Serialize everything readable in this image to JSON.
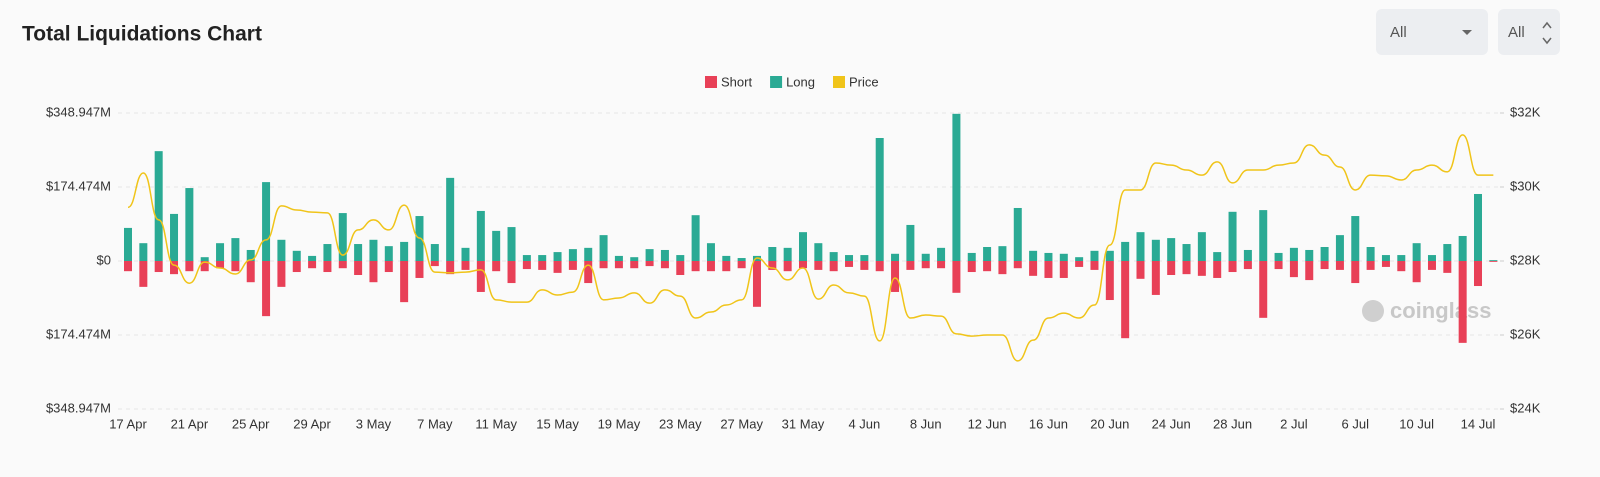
{
  "header": {
    "title": "Total Liquidations Chart"
  },
  "controls": [
    {
      "label": "All"
    },
    {
      "label": "All"
    }
  ],
  "watermark": "coinglass",
  "chart_data": {
    "type": "bar",
    "categories": [
      "17 Apr",
      null,
      null,
      null,
      "21 Apr",
      null,
      null,
      null,
      "25 Apr",
      null,
      null,
      null,
      "29 Apr",
      null,
      null,
      null,
      "3 May",
      null,
      null,
      null,
      "7 May",
      null,
      null,
      null,
      "11 May",
      null,
      null,
      null,
      "15 May",
      null,
      null,
      null,
      "19 May",
      null,
      null,
      null,
      "23 May",
      null,
      null,
      null,
      "27 May",
      null,
      null,
      null,
      "31 May",
      null,
      null,
      null,
      "4 Jun",
      null,
      null,
      null,
      "8 Jun",
      null,
      null,
      null,
      "12 Jun",
      null,
      null,
      null,
      "16 Jun",
      null,
      null,
      null,
      "20 Jun",
      null,
      null,
      null,
      "24 Jun",
      null,
      null,
      null,
      "28 Jun",
      null,
      null,
      null,
      "2 Jul",
      null,
      null,
      null,
      "6 Jul",
      null,
      null,
      null,
      "10 Jul",
      null,
      null,
      null,
      "14 Jul",
      null
    ],
    "series": [
      {
        "name": "Short",
        "color": "#e84057",
        "values": [
          -24,
          -61,
          -26,
          -31,
          -24,
          -24,
          -17,
          -24,
          -50,
          -130,
          -61,
          -26,
          -17,
          -26,
          -17,
          -33,
          -50,
          -26,
          -97,
          -40,
          -12,
          -31,
          -21,
          -73,
          -24,
          -52,
          -19,
          -21,
          -28,
          -21,
          -52,
          -17,
          -17,
          -17,
          -12,
          -17,
          -33,
          -24,
          -24,
          -24,
          -17,
          -108,
          -21,
          -24,
          -17,
          -21,
          -24,
          -14,
          -21,
          -24,
          -73,
          -21,
          -17,
          -17,
          -75,
          -26,
          -24,
          -31,
          -17,
          -35,
          -40,
          -40,
          -14,
          -21,
          -92,
          -182,
          -42,
          -80,
          -33,
          -31,
          -35,
          -40,
          -26,
          -19,
          -134,
          -19,
          -38,
          -45,
          -19,
          -21,
          -52,
          -21,
          -14,
          -24,
          -50,
          -21,
          -28,
          -193,
          -59,
          -2
        ]
      },
      {
        "name": "Long",
        "color": "#2aaa94",
        "values": [
          78,
          42,
          259,
          111,
          172,
          9,
          42,
          54,
          26,
          186,
          50,
          24,
          12,
          40,
          113,
          40,
          50,
          35,
          45,
          106,
          40,
          196,
          31,
          118,
          71,
          80,
          14,
          14,
          21,
          28,
          31,
          61,
          12,
          9,
          28,
          26,
          14,
          108,
          42,
          12,
          7,
          12,
          33,
          31,
          68,
          42,
          21,
          14,
          14,
          290,
          17,
          85,
          17,
          31,
          347,
          19,
          33,
          35,
          125,
          24,
          19,
          17,
          9,
          24,
          24,
          45,
          68,
          50,
          54,
          40,
          68,
          21,
          116,
          26,
          120,
          19,
          31,
          26,
          33,
          61,
          106,
          33,
          14,
          14,
          42,
          14,
          40,
          59,
          158,
          2
        ]
      },
      {
        "name": "Price",
        "color": "#f0c419",
        "type": "line",
        "axis": "y2",
        "values": [
          29450,
          30380,
          29110,
          27890,
          27400,
          27970,
          27810,
          27650,
          28030,
          28570,
          29490,
          29380,
          29320,
          29300,
          28160,
          28840,
          29110,
          28840,
          29510,
          28620,
          27700,
          27680,
          27700,
          27760,
          26950,
          26890,
          26890,
          27220,
          27080,
          27160,
          27890,
          26950,
          27000,
          27140,
          26860,
          27220,
          27050,
          26460,
          26620,
          26810,
          26950,
          28080,
          27810,
          27490,
          27810,
          26970,
          27350,
          27140,
          27050,
          25840,
          27540,
          26460,
          26540,
          26510,
          26030,
          25970,
          26000,
          26000,
          25300,
          25860,
          26460,
          26590,
          26460,
          26810,
          28430,
          29920,
          29920,
          30650,
          30590,
          30460,
          30320,
          30680,
          30110,
          30460,
          30460,
          30590,
          30650,
          31140,
          30860,
          30540,
          29920,
          30320,
          30300,
          30190,
          30460,
          30590,
          30410,
          31410,
          30320,
          30320
        ]
      }
    ],
    "ylim": [
      -348.947,
      348.947
    ],
    "yticks": [
      {
        "value": 348.947,
        "label": "$348.947M"
      },
      {
        "value": 174.474,
        "label": "$174.474M"
      },
      {
        "value": 0,
        "label": "$0"
      },
      {
        "value": -174.474,
        "label": "$174.474M"
      },
      {
        "value": -348.947,
        "label": "$348.947M"
      }
    ],
    "y2lim": [
      24000,
      32000
    ],
    "y2ticks": [
      {
        "value": 32000,
        "label": "$32K"
      },
      {
        "value": 30000,
        "label": "$30K"
      },
      {
        "value": 28000,
        "label": "$28K"
      },
      {
        "value": 26000,
        "label": "$26K"
      },
      {
        "value": 24000,
        "label": "$24K"
      }
    ],
    "grid": true,
    "legend": "top"
  }
}
